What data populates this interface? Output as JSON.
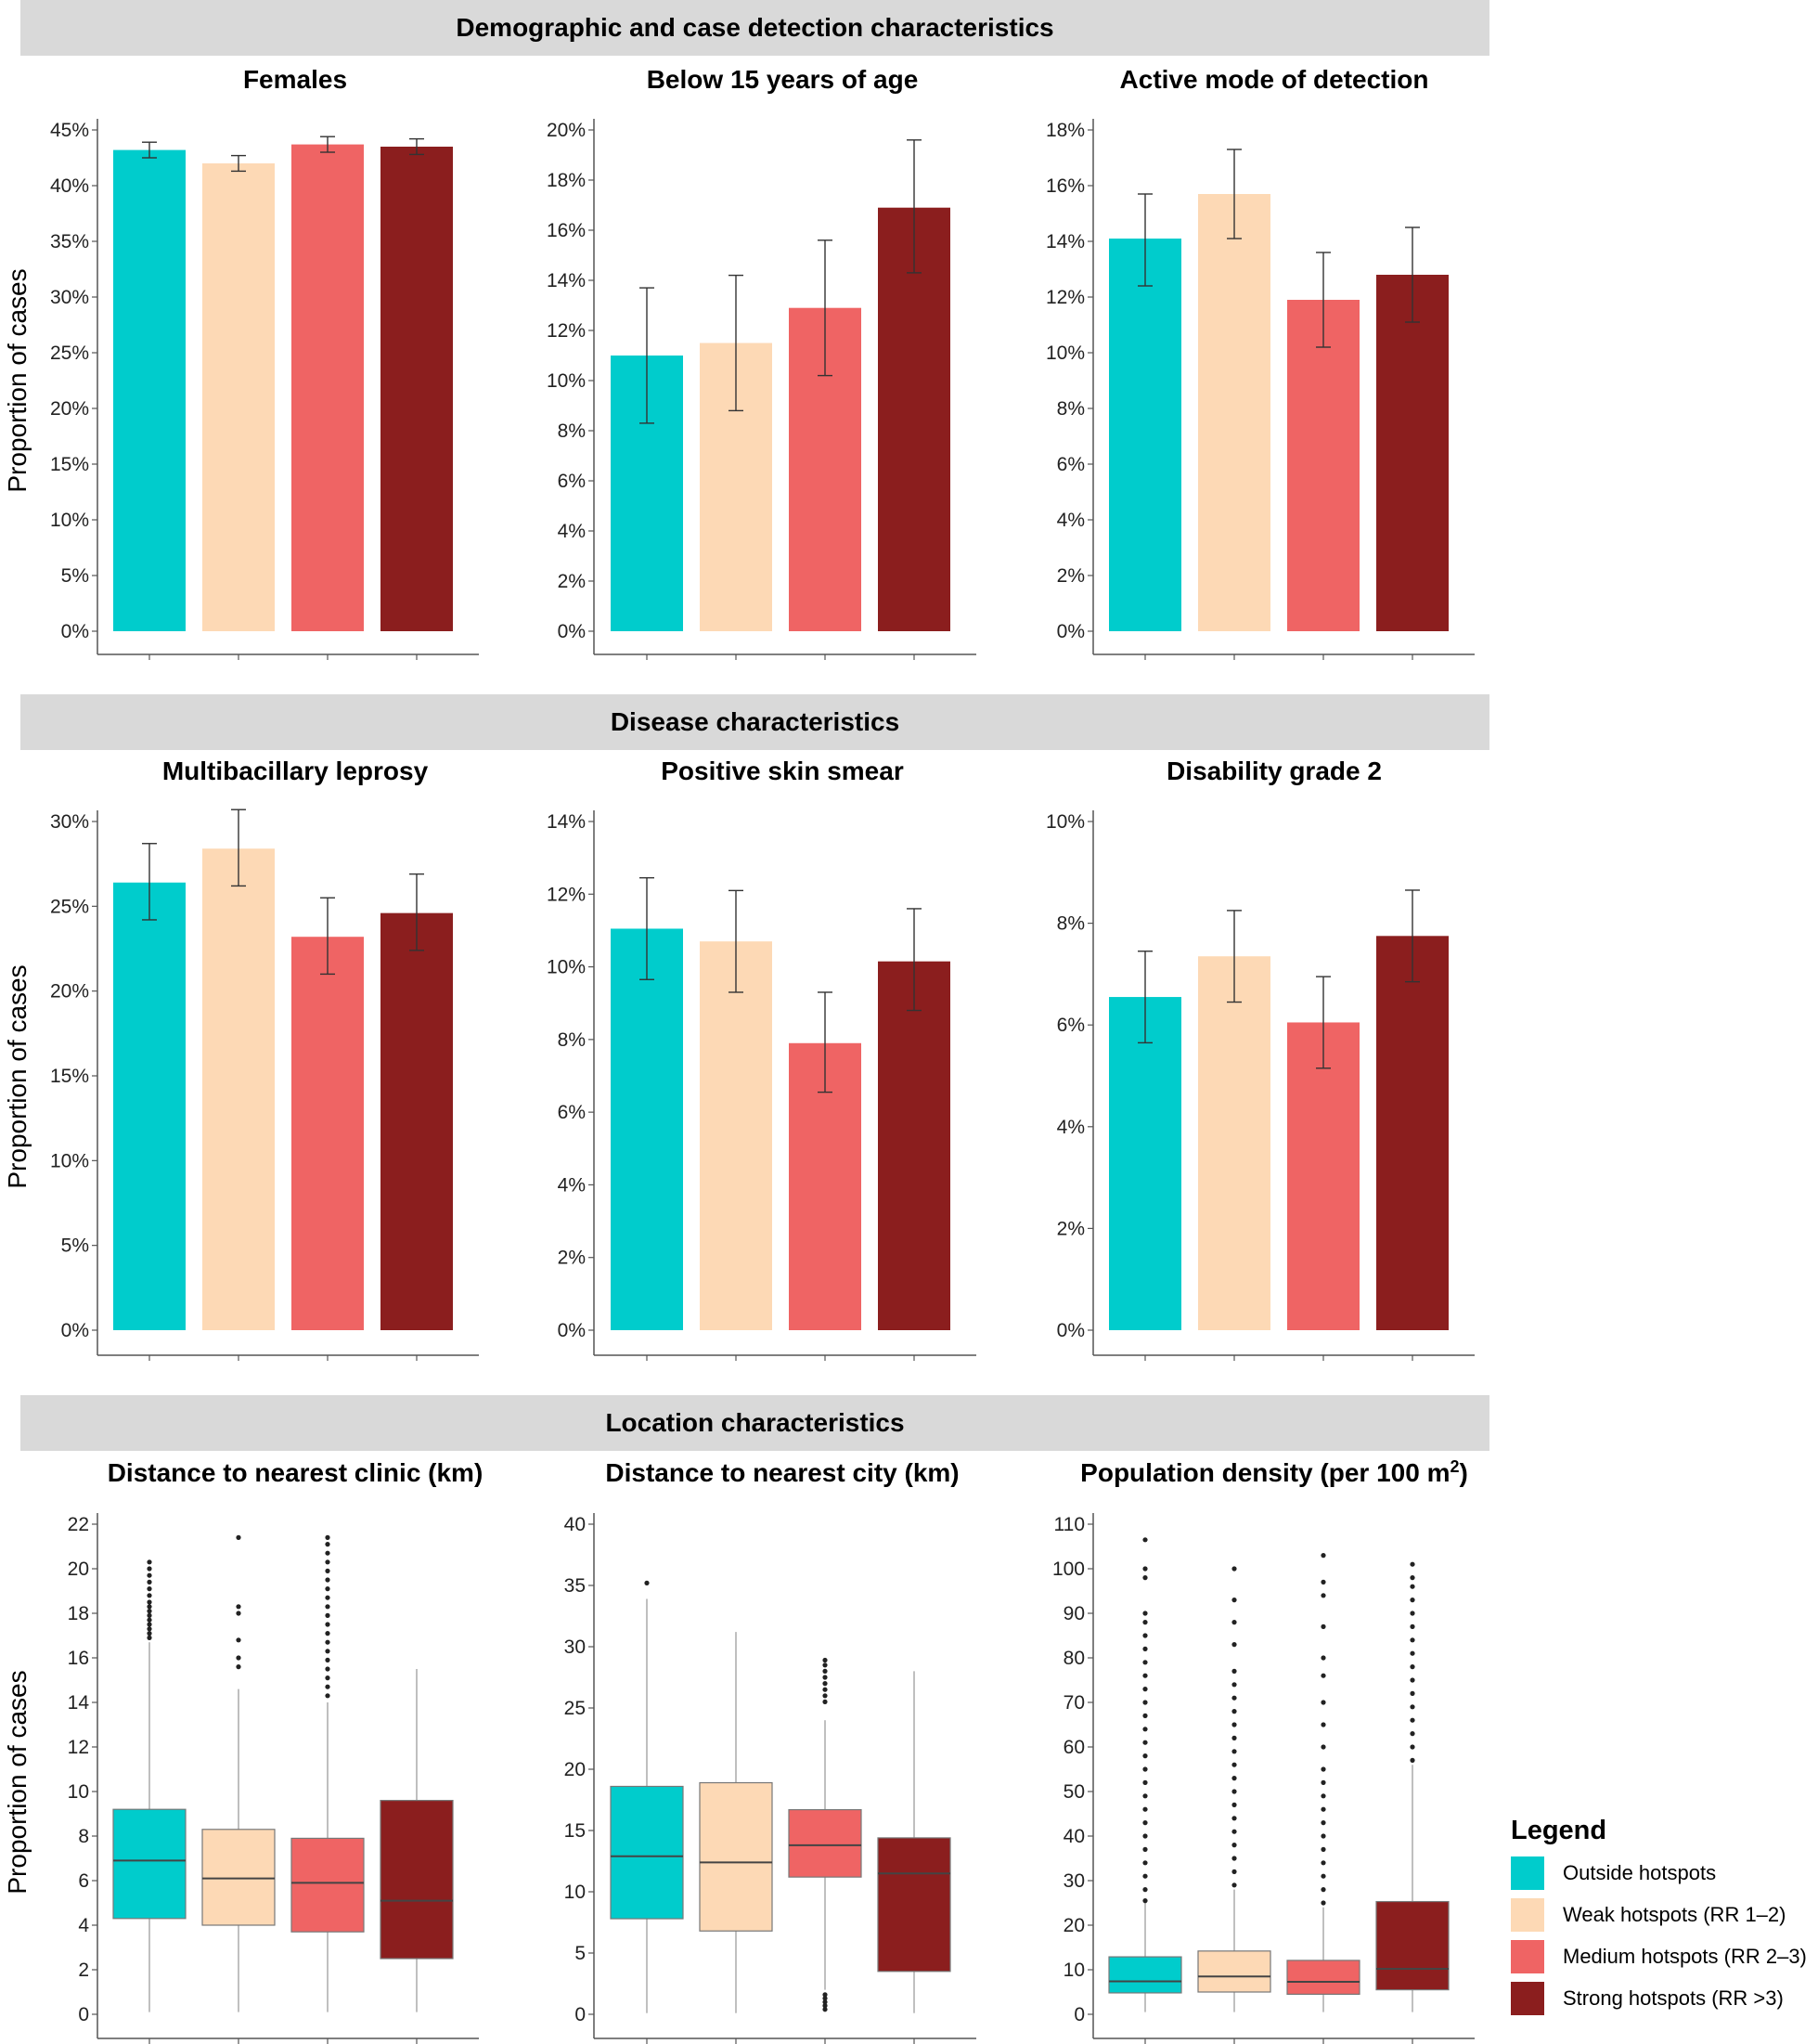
{
  "sections": [
    {
      "title": "Demographic and case detection characteristics"
    },
    {
      "title": "Disease characteristics"
    },
    {
      "title": "Location characteristics"
    }
  ],
  "colors": [
    "#00cccc",
    "#fdd9b5",
    "#ef6464",
    "#8b1e1e"
  ],
  "legend": {
    "title": "Legend",
    "items": [
      {
        "label": "Outside hotspots",
        "color": "#00cccc"
      },
      {
        "label": "Weak hotspots (RR 1–2)",
        "color": "#fdd9b5"
      },
      {
        "label": "Medium hotspots (RR 2–3)",
        "color": "#ef6464"
      },
      {
        "label": "Strong hotspots (RR >3)",
        "color": "#8b1e1e"
      }
    ]
  },
  "chart_data": [
    {
      "type": "bar",
      "title": "Females",
      "ylabel": "Proportion of cases",
      "categories": [
        "Outside hotspots",
        "Weak hotspots (RR 1–2)",
        "Medium hotspots (RR 2–3)",
        "Strong hotspots (RR >3)"
      ],
      "values": [
        43.2,
        42.0,
        43.7,
        43.5
      ],
      "err_low": [
        42.5,
        41.3,
        43.0,
        42.8
      ],
      "err_high": [
        43.9,
        42.7,
        44.4,
        44.2
      ],
      "ylim": [
        0,
        45
      ],
      "ticks": [
        "0%",
        "5%",
        "10%",
        "15%",
        "20%",
        "25%",
        "30%",
        "35%",
        "40%",
        "45%"
      ]
    },
    {
      "type": "bar",
      "title": "Below 15 years of age",
      "ylabel": "",
      "categories": [
        "Outside hotspots",
        "Weak hotspots (RR 1–2)",
        "Medium hotspots (RR 2–3)",
        "Strong hotspots (RR >3)"
      ],
      "values": [
        11.0,
        11.5,
        12.9,
        16.9
      ],
      "err_low": [
        8.3,
        8.8,
        10.2,
        14.3
      ],
      "err_high": [
        13.7,
        14.2,
        15.6,
        19.6
      ],
      "ylim": [
        0,
        20
      ],
      "ticks": [
        "0%",
        "2%",
        "4%",
        "6%",
        "8%",
        "10%",
        "12%",
        "14%",
        "16%",
        "18%",
        "20%"
      ]
    },
    {
      "type": "bar",
      "title": "Active mode of detection",
      "ylabel": "",
      "categories": [
        "Outside hotspots",
        "Weak hotspots (RR 1–2)",
        "Medium hotspots (RR 2–3)",
        "Strong hotspots (RR >3)"
      ],
      "values": [
        14.1,
        15.7,
        11.9,
        12.8
      ],
      "err_low": [
        12.4,
        14.1,
        10.2,
        11.1
      ],
      "err_high": [
        15.7,
        17.3,
        13.6,
        14.5
      ],
      "ylim": [
        0,
        18
      ],
      "ticks": [
        "0%",
        "2%",
        "4%",
        "6%",
        "8%",
        "10%",
        "12%",
        "14%",
        "16%",
        "18%"
      ]
    },
    {
      "type": "bar",
      "title": "Multibacillary leprosy",
      "ylabel": "Proportion of cases",
      "categories": [
        "Outside hotspots",
        "Weak hotspots (RR 1–2)",
        "Medium hotspots (RR 2–3)",
        "Strong hotspots (RR >3)"
      ],
      "values": [
        26.4,
        28.4,
        23.2,
        24.6
      ],
      "err_low": [
        24.2,
        26.2,
        21.0,
        22.4
      ],
      "err_high": [
        28.7,
        30.7,
        25.5,
        26.9
      ],
      "ylim": [
        0,
        30
      ],
      "ticks": [
        "0%",
        "5%",
        "10%",
        "15%",
        "20%",
        "25%",
        "30%"
      ]
    },
    {
      "type": "bar",
      "title": "Positive skin smear",
      "ylabel": "",
      "categories": [
        "Outside hotspots",
        "Weak hotspots (RR 1–2)",
        "Medium hotspots (RR 2–3)",
        "Strong hotspots (RR >3)"
      ],
      "values": [
        11.05,
        10.7,
        7.9,
        10.15
      ],
      "err_low": [
        9.65,
        9.3,
        6.55,
        8.8
      ],
      "err_high": [
        12.45,
        12.1,
        9.3,
        11.6
      ],
      "ylim": [
        0,
        14
      ],
      "ticks": [
        "0%",
        "2%",
        "4%",
        "6%",
        "8%",
        "10%",
        "12%",
        "14%"
      ]
    },
    {
      "type": "bar",
      "title": "Disability grade 2",
      "ylabel": "",
      "categories": [
        "Outside hotspots",
        "Weak hotspots (RR 1–2)",
        "Medium hotspots (RR 2–3)",
        "Strong hotspots (RR >3)"
      ],
      "values": [
        6.55,
        7.35,
        6.05,
        7.75
      ],
      "err_low": [
        5.65,
        6.45,
        5.15,
        6.85
      ],
      "err_high": [
        7.45,
        8.25,
        6.95,
        8.65
      ],
      "ylim": [
        0,
        10
      ],
      "ticks": [
        "0%",
        "2%",
        "4%",
        "6%",
        "8%",
        "10%"
      ]
    },
    {
      "type": "box",
      "title": "Distance to nearest clinic (km)",
      "ylabel": "Proportion of cases",
      "categories": [
        "Outside hotspots",
        "Weak hotspots (RR 1–2)",
        "Medium hotspots (RR 2–3)",
        "Strong hotspots (RR >3)"
      ],
      "boxes": [
        {
          "min": 0.1,
          "q1": 4.3,
          "median": 6.9,
          "q3": 9.2,
          "max": 16.7,
          "outliers": [
            16.9,
            17.1,
            17.3,
            17.5,
            17.7,
            17.9,
            18.1,
            18.3,
            18.5,
            18.8,
            19.1,
            19.4,
            19.7,
            20.0,
            20.3
          ]
        },
        {
          "min": 0.1,
          "q1": 4.0,
          "median": 6.1,
          "q3": 8.3,
          "max": 14.6,
          "outliers": [
            15.6,
            16.0,
            16.8,
            18.0,
            18.3,
            21.4
          ]
        },
        {
          "min": 0.1,
          "q1": 3.7,
          "median": 5.9,
          "q3": 7.9,
          "max": 14.0,
          "outliers": [
            14.3,
            14.7,
            15.1,
            15.5,
            15.9,
            16.3,
            16.7,
            17.1,
            17.5,
            17.9,
            18.3,
            18.7,
            19.1,
            19.5,
            19.9,
            20.3,
            20.7,
            21.1,
            21.4
          ]
        },
        {
          "min": 0.1,
          "q1": 2.5,
          "median": 5.1,
          "q3": 9.6,
          "max": 15.5,
          "outliers": []
        }
      ],
      "ylim": [
        0,
        22
      ],
      "ticks": [
        "0",
        "2",
        "4",
        "6",
        "8",
        "10",
        "12",
        "14",
        "16",
        "18",
        "20",
        "22"
      ]
    },
    {
      "type": "box",
      "title": "Distance to nearest city (km)",
      "ylabel": "",
      "categories": [
        "Outside hotspots",
        "Weak hotspots (RR 1–2)",
        "Medium hotspots (RR 2–3)",
        "Strong hotspots (RR >3)"
      ],
      "boxes": [
        {
          "min": 0.1,
          "q1": 7.8,
          "median": 12.9,
          "q3": 18.6,
          "max": 33.9,
          "outliers": [
            35.2
          ]
        },
        {
          "min": 0.1,
          "q1": 6.8,
          "median": 12.4,
          "q3": 18.9,
          "max": 31.2,
          "outliers": []
        },
        {
          "min": 2.0,
          "q1": 11.2,
          "median": 13.8,
          "q3": 16.7,
          "max": 24.0,
          "outliers": [
            0.4,
            0.7,
            1.0,
            1.3,
            1.6,
            25.5,
            26.0,
            26.5,
            27.0,
            27.5,
            28.0,
            28.5,
            28.9
          ]
        },
        {
          "min": 0.1,
          "q1": 3.5,
          "median": 11.5,
          "q3": 14.4,
          "max": 28.0,
          "outliers": []
        }
      ],
      "ylim": [
        0,
        40
      ],
      "ticks": [
        "0",
        "5",
        "10",
        "15",
        "20",
        "25",
        "30",
        "35",
        "40"
      ]
    },
    {
      "type": "box",
      "title": "Population density (per 100 m",
      "title_sup": "2",
      "title_end": ")",
      "ylabel": "",
      "categories": [
        "Outside hotspots",
        "Weak hotspots (RR 1–2)",
        "Medium hotspots (RR 2–3)",
        "Strong hotspots (RR >3)"
      ],
      "boxes": [
        {
          "min": 0.5,
          "q1": 4.8,
          "median": 7.4,
          "q3": 12.9,
          "max": 25.0,
          "outliers": [
            25.5,
            28,
            31,
            34,
            37,
            40,
            43,
            46,
            49,
            52,
            55,
            58,
            61,
            64,
            67,
            70,
            73,
            76,
            79,
            82,
            85,
            88,
            90,
            98,
            100,
            106.5
          ]
        },
        {
          "min": 0.5,
          "q1": 5.0,
          "median": 8.5,
          "q3": 14.2,
          "max": 28.0,
          "outliers": [
            29,
            32,
            35,
            38,
            41,
            44,
            47,
            50,
            53,
            56,
            59,
            62,
            65,
            68,
            71,
            74,
            77,
            83,
            88,
            93,
            100
          ]
        },
        {
          "min": 0.5,
          "q1": 4.5,
          "median": 7.3,
          "q3": 12.1,
          "max": 24.0,
          "outliers": [
            25,
            28,
            31,
            34,
            37,
            40,
            43,
            46,
            49,
            52,
            55,
            60,
            65,
            70,
            76,
            80,
            87,
            94,
            97,
            103
          ]
        },
        {
          "min": 0.5,
          "q1": 5.5,
          "median": 10.2,
          "q3": 25.3,
          "max": 56.0,
          "outliers": [
            57,
            60,
            63,
            66,
            69,
            72,
            75,
            78,
            81,
            84,
            87,
            90,
            93,
            96,
            98,
            101
          ]
        }
      ],
      "ylim": [
        0,
        110
      ],
      "ticks": [
        "0",
        "10",
        "20",
        "30",
        "40",
        "50",
        "60",
        "70",
        "80",
        "90",
        "100",
        "110"
      ]
    }
  ]
}
